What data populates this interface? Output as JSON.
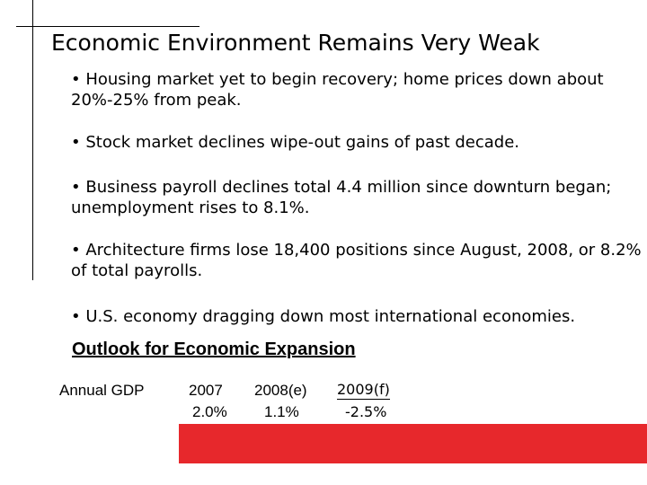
{
  "slide": {
    "title": "Economic Environment Remains Very Weak",
    "bullets": [
      "• Housing market yet to begin recovery; home prices down about 20%-25% from peak.",
      "• Stock market declines wipe-out gains of past decade.",
      "• Business payroll declines total 4.4 million since downturn began; unemployment rises to 8.1%.",
      "• Architecture firms lose 18,400 positions since August, 2008, or 8.2% of total payrolls.",
      "• U.S. economy dragging down most international economies."
    ],
    "outlook": {
      "heading": "Outlook for  Economic Expansion",
      "row_label": "Annual GDP",
      "columns": [
        {
          "year": "2007",
          "value": "2.0%"
        },
        {
          "year": "2008(e)",
          "value": "1.1%"
        },
        {
          "year": "2009(f)",
          "value": "-2.5%"
        }
      ]
    },
    "accent_color": "#e7282c"
  }
}
